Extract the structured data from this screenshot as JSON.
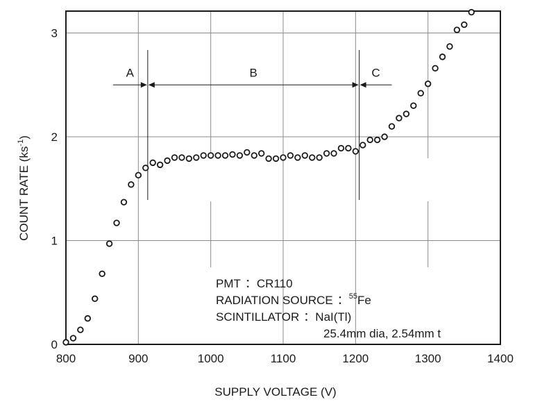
{
  "chart_data": {
    "type": "scatter",
    "xlabel": "SUPPLY VOLTAGE (V)",
    "ylabel_main": "COUNT RATE (ks",
    "ylabel_sup": "-1",
    "ylabel_end": ")",
    "xlim": [
      800,
      1400
    ],
    "ylim": [
      0,
      3.2
    ],
    "xticks": [
      "800",
      "900",
      "1000",
      "1100",
      "1200",
      "1300",
      "1400"
    ],
    "xtick_values": [
      800,
      900,
      1000,
      1100,
      1200,
      1300,
      1400
    ],
    "yticks": [
      "0",
      "1",
      "2",
      "3"
    ],
    "ytick_values": [
      0,
      1,
      2,
      3
    ],
    "grid": true,
    "marker": "open-circle",
    "marker_color": "#1a1a1a",
    "x": [
      800,
      810,
      820,
      830,
      840,
      850,
      860,
      870,
      880,
      890,
      900,
      910,
      920,
      930,
      940,
      950,
      960,
      970,
      980,
      990,
      1000,
      1010,
      1020,
      1030,
      1040,
      1050,
      1060,
      1070,
      1080,
      1090,
      1100,
      1110,
      1120,
      1130,
      1140,
      1150,
      1160,
      1170,
      1180,
      1190,
      1200,
      1210,
      1220,
      1230,
      1240,
      1250,
      1260,
      1270,
      1280,
      1290,
      1300,
      1310,
      1320,
      1330,
      1340,
      1350,
      1360
    ],
    "y": [
      0.02,
      0.06,
      0.14,
      0.25,
      0.44,
      0.68,
      0.97,
      1.17,
      1.37,
      1.54,
      1.63,
      1.7,
      1.75,
      1.73,
      1.77,
      1.8,
      1.8,
      1.79,
      1.8,
      1.82,
      1.82,
      1.82,
      1.82,
      1.83,
      1.82,
      1.85,
      1.82,
      1.84,
      1.79,
      1.79,
      1.8,
      1.82,
      1.8,
      1.82,
      1.8,
      1.8,
      1.84,
      1.84,
      1.89,
      1.89,
      1.86,
      1.92,
      1.97,
      1.97,
      2.0,
      2.1,
      2.18,
      2.22,
      2.3,
      2.42,
      2.51,
      2.66,
      2.77,
      2.87,
      3.03,
      3.08,
      3.2
    ],
    "regions": [
      {
        "label": "A",
        "from": 865,
        "to": 912
      },
      {
        "label": "B",
        "from": 914,
        "to": 1204
      },
      {
        "label": "C",
        "from": 1206,
        "to": 1250
      }
    ],
    "annotation": {
      "line1_key": "PMT",
      "line1_sep": "：",
      "line1_val": "CR110",
      "line2_key": "RADIATION SOURCE",
      "line2_sep": "：",
      "line2_sup": "55",
      "line2_val": "Fe",
      "line3_key": "SCINTILLATOR",
      "line3_sep": "：",
      "line3_val": "NaI(Tl)",
      "line4": "25.4mm dia, 2.54mm t"
    }
  }
}
